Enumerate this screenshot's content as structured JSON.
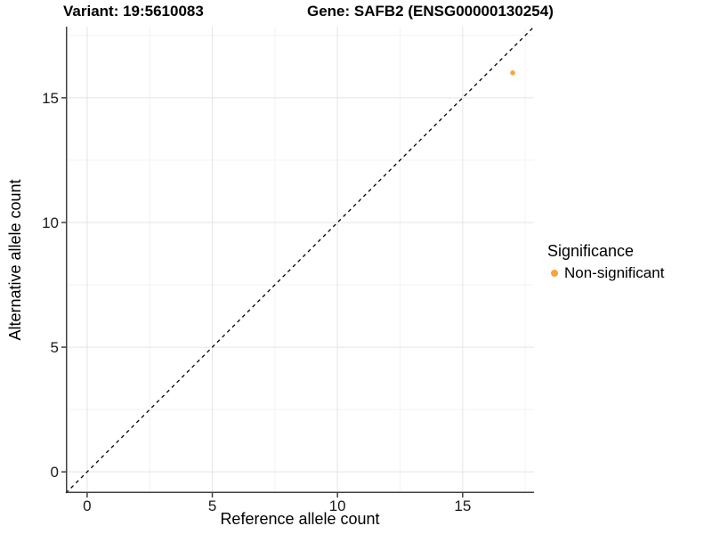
{
  "figure": {
    "variant_title": "Variant: 19:5610083",
    "gene_title": "Gene: SAFB2 (ENSG00000130254)"
  },
  "axes": {
    "x_label": "Reference allele count",
    "y_label": "Alternative allele count"
  },
  "legend": {
    "title": "Significance",
    "items": [
      {
        "label": "Non-significant",
        "color": "#FAA43A"
      }
    ]
  },
  "colors": {
    "axis_line": "#404040",
    "tick_mark": "#404040",
    "grid_major": "#E4E4E4",
    "grid_minor": "#F3F3F3",
    "reference_line": "#000000",
    "point": "#FAA43A",
    "background": "#FFFFFF"
  },
  "chart_data": {
    "type": "scatter",
    "title": "Variant: 19:5610083 / Gene: SAFB2 (ENSG00000130254)",
    "xlabel": "Reference allele count",
    "ylabel": "Alternative allele count",
    "xlim": [
      -0.85,
      17.85
    ],
    "ylim": [
      -0.85,
      17.85
    ],
    "x_ticks": [
      0,
      5,
      10,
      15
    ],
    "y_ticks": [
      0,
      5,
      10,
      15
    ],
    "x_minor_ticks": [
      2.5,
      7.5,
      12.5,
      17.5
    ],
    "y_minor_ticks": [
      2.5,
      7.5,
      12.5,
      17.5
    ],
    "grid": "major and minor, light gray on white",
    "legend_position": "right",
    "series": [
      {
        "name": "Non-significant",
        "color": "#FAA43A",
        "points": [
          {
            "x": 17,
            "y": 16
          }
        ]
      }
    ],
    "reference_line": {
      "type": "identity y = x",
      "style": "dashed",
      "color": "#000000"
    }
  }
}
